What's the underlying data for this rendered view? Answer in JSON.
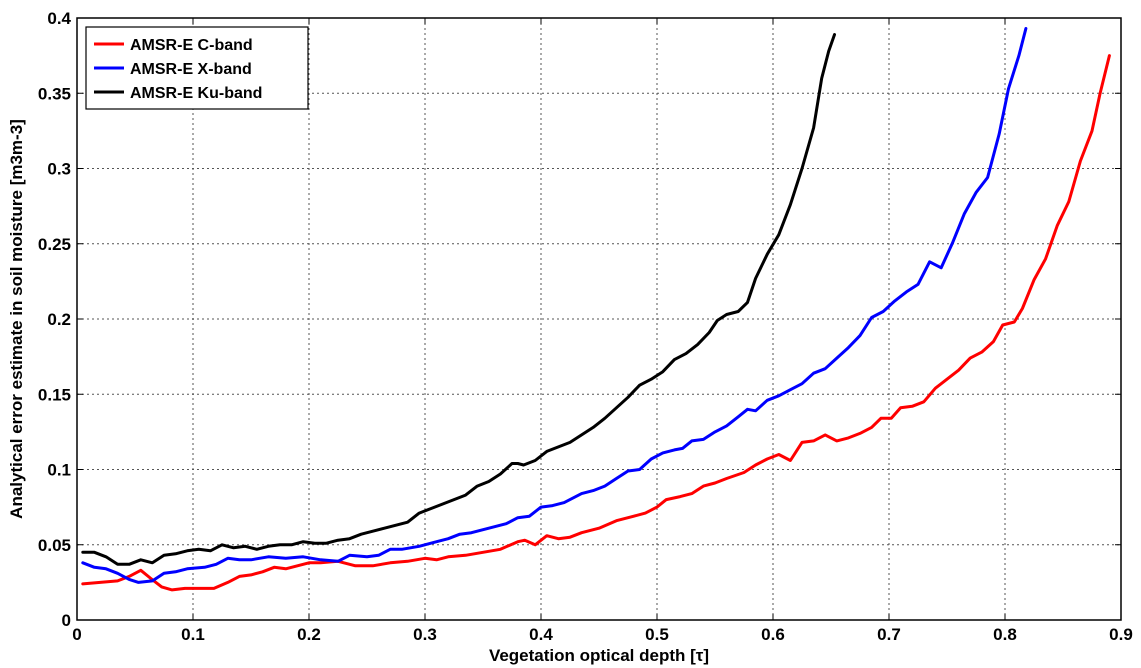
{
  "chart_data": {
    "type": "line",
    "xlabel": "Vegetation optical depth [τ]",
    "ylabel": "Analytical error estimate in soil moisture [m3m-3]",
    "xlim": [
      0,
      0.9
    ],
    "ylim": [
      0,
      0.4
    ],
    "xticks": [
      "0",
      "0.1",
      "0.2",
      "0.3",
      "0.4",
      "0.5",
      "0.6",
      "0.7",
      "0.8",
      "0.9"
    ],
    "yticks": [
      "0",
      "0.05",
      "0.1",
      "0.15",
      "0.2",
      "0.25",
      "0.3",
      "0.35",
      "0.4"
    ],
    "grid": true,
    "legend_position": "top-left",
    "series": [
      {
        "name": "AMSR-E C-band",
        "color": "#ff0000",
        "points": [
          [
            0.005,
            0.024
          ],
          [
            0.02,
            0.025
          ],
          [
            0.035,
            0.026
          ],
          [
            0.045,
            0.029
          ],
          [
            0.055,
            0.033
          ],
          [
            0.063,
            0.028
          ],
          [
            0.073,
            0.022
          ],
          [
            0.082,
            0.02
          ],
          [
            0.093,
            0.021
          ],
          [
            0.105,
            0.021
          ],
          [
            0.118,
            0.021
          ],
          [
            0.13,
            0.025
          ],
          [
            0.14,
            0.029
          ],
          [
            0.15,
            0.03
          ],
          [
            0.16,
            0.032
          ],
          [
            0.17,
            0.035
          ],
          [
            0.18,
            0.034
          ],
          [
            0.19,
            0.036
          ],
          [
            0.2,
            0.038
          ],
          [
            0.21,
            0.038
          ],
          [
            0.225,
            0.039
          ],
          [
            0.24,
            0.036
          ],
          [
            0.255,
            0.036
          ],
          [
            0.27,
            0.038
          ],
          [
            0.285,
            0.039
          ],
          [
            0.3,
            0.041
          ],
          [
            0.31,
            0.04
          ],
          [
            0.32,
            0.042
          ],
          [
            0.335,
            0.043
          ],
          [
            0.35,
            0.045
          ],
          [
            0.365,
            0.047
          ],
          [
            0.38,
            0.052
          ],
          [
            0.386,
            0.053
          ],
          [
            0.395,
            0.05
          ],
          [
            0.405,
            0.056
          ],
          [
            0.415,
            0.054
          ],
          [
            0.425,
            0.055
          ],
          [
            0.435,
            0.058
          ],
          [
            0.45,
            0.061
          ],
          [
            0.465,
            0.066
          ],
          [
            0.48,
            0.069
          ],
          [
            0.49,
            0.071
          ],
          [
            0.5,
            0.075
          ],
          [
            0.508,
            0.08
          ],
          [
            0.52,
            0.082
          ],
          [
            0.53,
            0.084
          ],
          [
            0.54,
            0.089
          ],
          [
            0.55,
            0.091
          ],
          [
            0.56,
            0.094
          ],
          [
            0.575,
            0.098
          ],
          [
            0.585,
            0.103
          ],
          [
            0.595,
            0.107
          ],
          [
            0.605,
            0.11
          ],
          [
            0.615,
            0.106
          ],
          [
            0.625,
            0.118
          ],
          [
            0.635,
            0.119
          ],
          [
            0.645,
            0.123
          ],
          [
            0.655,
            0.119
          ],
          [
            0.665,
            0.121
          ],
          [
            0.675,
            0.124
          ],
          [
            0.685,
            0.128
          ],
          [
            0.693,
            0.134
          ],
          [
            0.702,
            0.134
          ],
          [
            0.71,
            0.141
          ],
          [
            0.72,
            0.142
          ],
          [
            0.73,
            0.145
          ],
          [
            0.74,
            0.154
          ],
          [
            0.75,
            0.16
          ],
          [
            0.76,
            0.166
          ],
          [
            0.77,
            0.174
          ],
          [
            0.78,
            0.178
          ],
          [
            0.79,
            0.185
          ],
          [
            0.798,
            0.196
          ],
          [
            0.808,
            0.198
          ],
          [
            0.815,
            0.207
          ],
          [
            0.825,
            0.226
          ],
          [
            0.835,
            0.24
          ],
          [
            0.845,
            0.262
          ],
          [
            0.855,
            0.278
          ],
          [
            0.865,
            0.305
          ],
          [
            0.875,
            0.325
          ],
          [
            0.882,
            0.35
          ],
          [
            0.89,
            0.375
          ]
        ]
      },
      {
        "name": "AMSR-E X-band",
        "color": "#0000ff",
        "points": [
          [
            0.005,
            0.038
          ],
          [
            0.015,
            0.035
          ],
          [
            0.025,
            0.034
          ],
          [
            0.035,
            0.031
          ],
          [
            0.045,
            0.027
          ],
          [
            0.053,
            0.025
          ],
          [
            0.065,
            0.026
          ],
          [
            0.075,
            0.031
          ],
          [
            0.085,
            0.032
          ],
          [
            0.095,
            0.034
          ],
          [
            0.11,
            0.035
          ],
          [
            0.12,
            0.037
          ],
          [
            0.13,
            0.041
          ],
          [
            0.14,
            0.04
          ],
          [
            0.15,
            0.04
          ],
          [
            0.165,
            0.042
          ],
          [
            0.18,
            0.041
          ],
          [
            0.195,
            0.042
          ],
          [
            0.21,
            0.04
          ],
          [
            0.225,
            0.039
          ],
          [
            0.235,
            0.043
          ],
          [
            0.25,
            0.042
          ],
          [
            0.26,
            0.043
          ],
          [
            0.27,
            0.047
          ],
          [
            0.28,
            0.047
          ],
          [
            0.295,
            0.049
          ],
          [
            0.31,
            0.052
          ],
          [
            0.32,
            0.054
          ],
          [
            0.33,
            0.057
          ],
          [
            0.34,
            0.058
          ],
          [
            0.355,
            0.061
          ],
          [
            0.37,
            0.064
          ],
          [
            0.38,
            0.068
          ],
          [
            0.39,
            0.069
          ],
          [
            0.4,
            0.075
          ],
          [
            0.41,
            0.076
          ],
          [
            0.42,
            0.078
          ],
          [
            0.435,
            0.084
          ],
          [
            0.445,
            0.086
          ],
          [
            0.455,
            0.089
          ],
          [
            0.465,
            0.094
          ],
          [
            0.475,
            0.099
          ],
          [
            0.485,
            0.1
          ],
          [
            0.495,
            0.107
          ],
          [
            0.505,
            0.111
          ],
          [
            0.515,
            0.113
          ],
          [
            0.522,
            0.114
          ],
          [
            0.53,
            0.119
          ],
          [
            0.54,
            0.12
          ],
          [
            0.55,
            0.125
          ],
          [
            0.56,
            0.129
          ],
          [
            0.57,
            0.135
          ],
          [
            0.578,
            0.14
          ],
          [
            0.585,
            0.139
          ],
          [
            0.595,
            0.146
          ],
          [
            0.605,
            0.149
          ],
          [
            0.615,
            0.153
          ],
          [
            0.625,
            0.157
          ],
          [
            0.635,
            0.164
          ],
          [
            0.645,
            0.167
          ],
          [
            0.655,
            0.174
          ],
          [
            0.665,
            0.181
          ],
          [
            0.675,
            0.189
          ],
          [
            0.685,
            0.201
          ],
          [
            0.695,
            0.205
          ],
          [
            0.705,
            0.212
          ],
          [
            0.715,
            0.218
          ],
          [
            0.725,
            0.223
          ],
          [
            0.735,
            0.238
          ],
          [
            0.745,
            0.234
          ],
          [
            0.755,
            0.251
          ],
          [
            0.765,
            0.27
          ],
          [
            0.775,
            0.284
          ],
          [
            0.785,
            0.294
          ],
          [
            0.795,
            0.323
          ],
          [
            0.803,
            0.353
          ],
          [
            0.812,
            0.375
          ],
          [
            0.818,
            0.393
          ]
        ]
      },
      {
        "name": "AMSR-E Ku-band",
        "color": "#000000",
        "points": [
          [
            0.005,
            0.045
          ],
          [
            0.015,
            0.045
          ],
          [
            0.025,
            0.042
          ],
          [
            0.035,
            0.037
          ],
          [
            0.045,
            0.037
          ],
          [
            0.055,
            0.04
          ],
          [
            0.065,
            0.038
          ],
          [
            0.075,
            0.043
          ],
          [
            0.085,
            0.044
          ],
          [
            0.095,
            0.046
          ],
          [
            0.105,
            0.047
          ],
          [
            0.115,
            0.046
          ],
          [
            0.125,
            0.05
          ],
          [
            0.135,
            0.048
          ],
          [
            0.145,
            0.049
          ],
          [
            0.155,
            0.047
          ],
          [
            0.165,
            0.049
          ],
          [
            0.175,
            0.05
          ],
          [
            0.185,
            0.05
          ],
          [
            0.195,
            0.052
          ],
          [
            0.205,
            0.051
          ],
          [
            0.215,
            0.051
          ],
          [
            0.225,
            0.053
          ],
          [
            0.235,
            0.054
          ],
          [
            0.245,
            0.057
          ],
          [
            0.255,
            0.059
          ],
          [
            0.265,
            0.061
          ],
          [
            0.275,
            0.063
          ],
          [
            0.285,
            0.065
          ],
          [
            0.295,
            0.071
          ],
          [
            0.305,
            0.074
          ],
          [
            0.315,
            0.077
          ],
          [
            0.325,
            0.08
          ],
          [
            0.335,
            0.083
          ],
          [
            0.345,
            0.089
          ],
          [
            0.355,
            0.092
          ],
          [
            0.365,
            0.097
          ],
          [
            0.375,
            0.104
          ],
          [
            0.38,
            0.104
          ],
          [
            0.385,
            0.103
          ],
          [
            0.395,
            0.106
          ],
          [
            0.405,
            0.112
          ],
          [
            0.415,
            0.115
          ],
          [
            0.425,
            0.118
          ],
          [
            0.435,
            0.123
          ],
          [
            0.445,
            0.128
          ],
          [
            0.455,
            0.134
          ],
          [
            0.465,
            0.141
          ],
          [
            0.475,
            0.148
          ],
          [
            0.485,
            0.156
          ],
          [
            0.495,
            0.16
          ],
          [
            0.505,
            0.165
          ],
          [
            0.515,
            0.173
          ],
          [
            0.525,
            0.177
          ],
          [
            0.535,
            0.183
          ],
          [
            0.545,
            0.191
          ],
          [
            0.552,
            0.199
          ],
          [
            0.56,
            0.203
          ],
          [
            0.57,
            0.205
          ],
          [
            0.578,
            0.211
          ],
          [
            0.585,
            0.227
          ],
          [
            0.595,
            0.243
          ],
          [
            0.605,
            0.256
          ],
          [
            0.615,
            0.276
          ],
          [
            0.625,
            0.3
          ],
          [
            0.635,
            0.327
          ],
          [
            0.642,
            0.36
          ],
          [
            0.648,
            0.378
          ],
          [
            0.653,
            0.389
          ]
        ]
      }
    ]
  }
}
